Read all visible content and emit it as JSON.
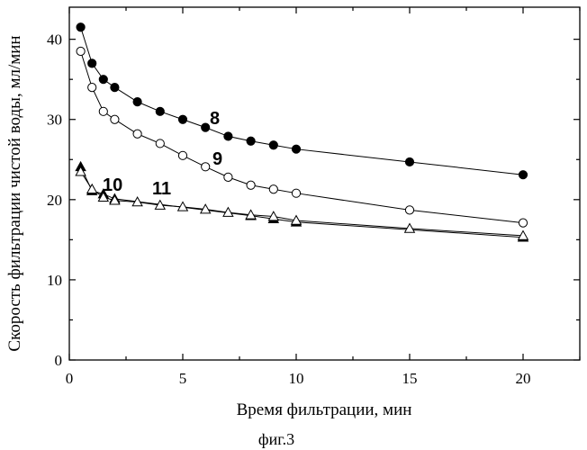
{
  "chart_data": {
    "type": "scatter",
    "xlabel": "Время фильтрации, мин",
    "ylabel": "Скорость фильтрации чистой воды, мл/мин",
    "caption": "фиг.3",
    "xlim": [
      0,
      22.5
    ],
    "ylim": [
      0,
      44
    ],
    "xticks": [
      0,
      5,
      10,
      15,
      20
    ],
    "yticks": [
      0,
      10,
      20,
      30,
      40
    ],
    "grid": false,
    "series": [
      {
        "name": "8",
        "marker": "filled-circle",
        "x": [
          0.5,
          1,
          1.5,
          2,
          3,
          4,
          5,
          6,
          7,
          8,
          9,
          10,
          15,
          20
        ],
        "y": [
          41.5,
          37,
          35,
          34,
          32.2,
          31,
          30,
          29,
          27.9,
          27.3,
          26.8,
          26.3,
          24.7,
          23.1
        ]
      },
      {
        "name": "9",
        "marker": "open-circle",
        "x": [
          0.5,
          1,
          1.5,
          2,
          3,
          4,
          5,
          6,
          7,
          8,
          9,
          10,
          15,
          20
        ],
        "y": [
          38.5,
          34,
          31,
          30,
          28.2,
          27,
          25.5,
          24.1,
          22.8,
          21.8,
          21.3,
          20.8,
          18.7,
          17.1
        ]
      },
      {
        "name": "10",
        "marker": "filled-triangle",
        "x": [
          0.5,
          1,
          1.5,
          2,
          8,
          9,
          10,
          20
        ],
        "y": [
          24.1,
          21.1,
          20.7,
          20.1,
          18.0,
          17.6,
          17.2,
          15.3
        ]
      },
      {
        "name": "11",
        "marker": "open-triangle",
        "x": [
          0.5,
          1,
          1.5,
          2,
          3,
          4,
          5,
          6,
          7,
          8,
          9,
          10,
          15,
          20
        ],
        "y": [
          23.5,
          21.3,
          20.3,
          19.9,
          19.7,
          19.3,
          19.1,
          18.8,
          18.4,
          18.1,
          17.9,
          17.4,
          16.4,
          15.5
        ]
      }
    ]
  }
}
